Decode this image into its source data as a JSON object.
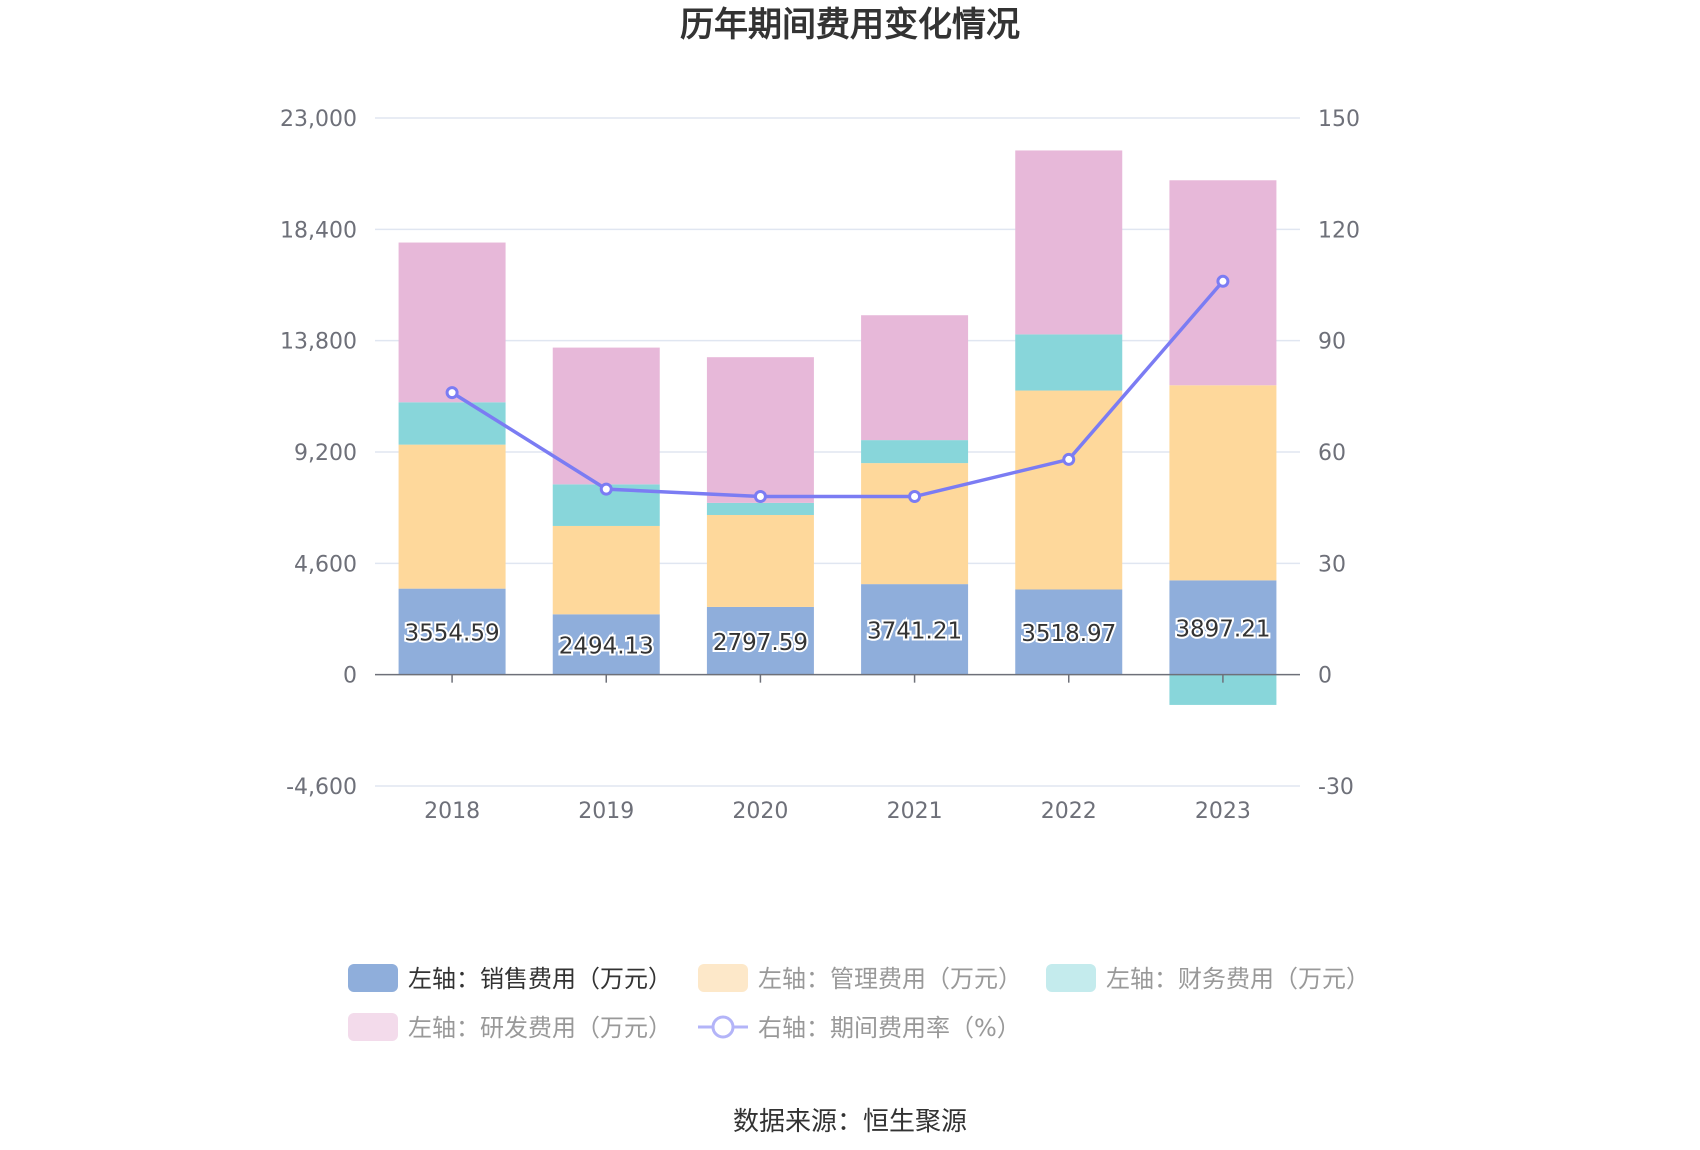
{
  "chart_data": {
    "type": "bar",
    "title": "历年期间费用变化情况",
    "categories": [
      "2018",
      "2019",
      "2020",
      "2021",
      "2022",
      "2023"
    ],
    "left_axis": {
      "min": -4600,
      "max": 23000,
      "ticks": [
        "23,000",
        "18,400",
        "13,800",
        "9,200",
        "4,600",
        "0",
        "-4,600"
      ],
      "tick_values": [
        23000,
        18400,
        13800,
        9200,
        4600,
        0,
        -4600
      ]
    },
    "right_axis": {
      "min": -30,
      "max": 150,
      "ticks": [
        "150",
        "120",
        "90",
        "60",
        "30",
        "0",
        "-30"
      ],
      "tick_values": [
        150,
        120,
        90,
        60,
        30,
        0,
        -30
      ]
    },
    "series": [
      {
        "name": "左轴：销售费用（万元）",
        "color": "#8faedb",
        "values": [
          3554.59,
          2494.13,
          2797.59,
          3741.21,
          3518.97,
          3897.21
        ],
        "labels": [
          "3554.59",
          "2494.13",
          "2797.59",
          "3741.21",
          "3518.97",
          "3897.21"
        ]
      },
      {
        "name": "左轴：管理费用（万元）",
        "color": "#fed89b",
        "values": [
          5950,
          3650,
          3800,
          5000,
          8220,
          8060
        ]
      },
      {
        "name": "左轴：财务费用（万元）",
        "color": "#88d6da",
        "values": [
          1750,
          1720,
          500,
          950,
          2320,
          -1250
        ]
      },
      {
        "name": "左轴：研发费用（万元）",
        "color": "#e7b8d9",
        "values": [
          6600,
          5650,
          6020,
          5160,
          7600,
          8470
        ]
      }
    ],
    "line_series": {
      "name": "右轴：期间费用率（%）",
      "color": "#7b7cf3",
      "values": [
        76,
        50,
        48,
        48,
        58,
        106
      ]
    }
  },
  "legend": [
    {
      "label": "左轴：销售费用（万元）",
      "swatch": "#8faedb",
      "text_color": "#333333"
    },
    {
      "label": "左轴：管理费用（万元）",
      "swatch": "#fde8c9",
      "text_color": "#999999"
    },
    {
      "label": "左轴：财务费用（万元）",
      "swatch": "#c4ebed",
      "text_color": "#999999"
    },
    {
      "label": "左轴：研发费用（万元）",
      "swatch": "#f3dbeb",
      "text_color": "#999999"
    },
    {
      "label": "右轴：期间费用率（%）",
      "swatch": "#b3b4f8",
      "text_color": "#999999"
    }
  ],
  "source": "数据来源：恒生聚源"
}
